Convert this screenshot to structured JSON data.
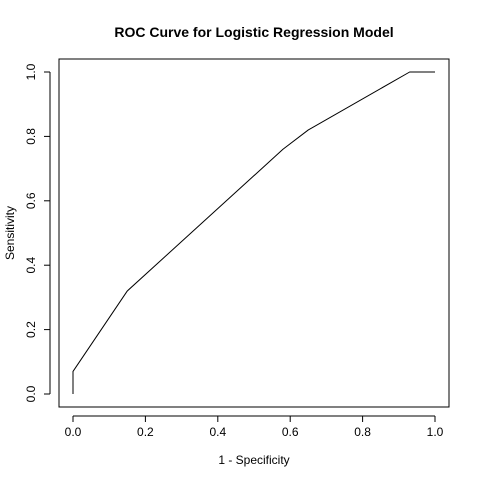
{
  "chart_data": {
    "type": "line",
    "title": "ROC Curve for Logistic Regression Model",
    "xlabel": "1 - Specificity",
    "ylabel": "Sensitivity",
    "xlim": [
      0,
      1
    ],
    "ylim": [
      0,
      1
    ],
    "grid": false,
    "x_ticks": [
      0.0,
      0.2,
      0.4,
      0.6,
      0.8,
      1.0
    ],
    "x_tick_labels": [
      "0.0",
      "0.2",
      "0.4",
      "0.6",
      "0.8",
      "1.0"
    ],
    "y_ticks": [
      0.0,
      0.2,
      0.4,
      0.6,
      0.8,
      1.0
    ],
    "y_tick_labels": [
      "0.0",
      "0.2",
      "0.4",
      "0.6",
      "0.8",
      "1.0"
    ],
    "series": [
      {
        "x": [
          0.0,
          0.0,
          0.15,
          0.58,
          0.65,
          0.93,
          1.0
        ],
        "y": [
          0.0,
          0.07,
          0.32,
          0.76,
          0.82,
          1.0,
          1.0
        ],
        "color": "#000000"
      }
    ]
  }
}
